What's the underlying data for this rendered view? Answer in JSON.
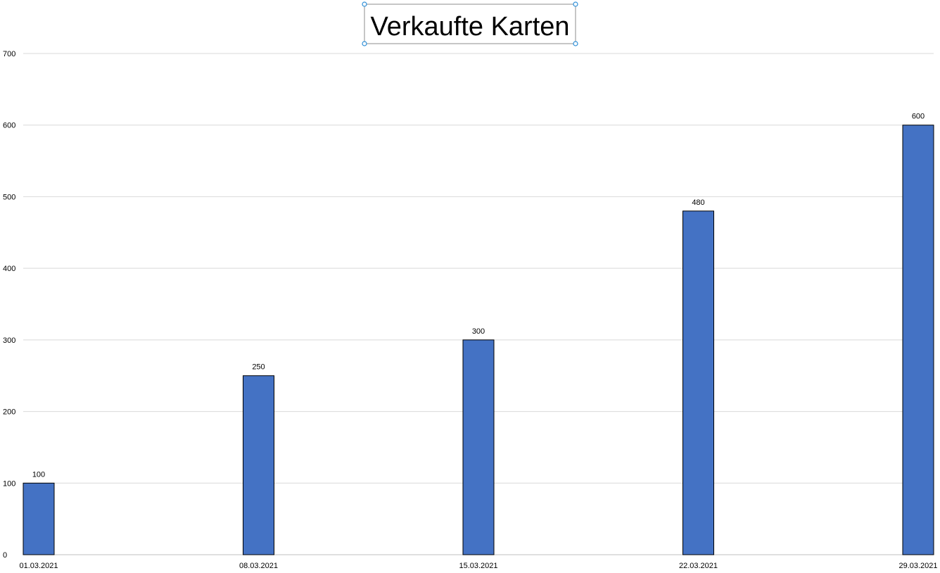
{
  "chart_data": {
    "type": "bar",
    "title": "Verkaufte Karten",
    "xlabel": "",
    "ylabel": "",
    "categories": [
      "01.03.2021",
      "08.03.2021",
      "15.03.2021",
      "22.03.2021",
      "29.03.2021"
    ],
    "values": [
      100,
      250,
      300,
      480,
      600
    ],
    "ylim": [
      0,
      700
    ],
    "yticks": [
      0,
      100,
      200,
      300,
      400,
      500,
      600,
      700
    ],
    "grid": true,
    "data_labels": true,
    "x_axis_type": "date",
    "x_range": [
      "01.03.2021",
      "29.03.2021"
    ],
    "bar_color": "#4472C4",
    "bar_border_color": "#000000",
    "gridline_color": "#D9D9D9",
    "title_selected": true,
    "selection_handle_color": "#2E8FD8"
  }
}
